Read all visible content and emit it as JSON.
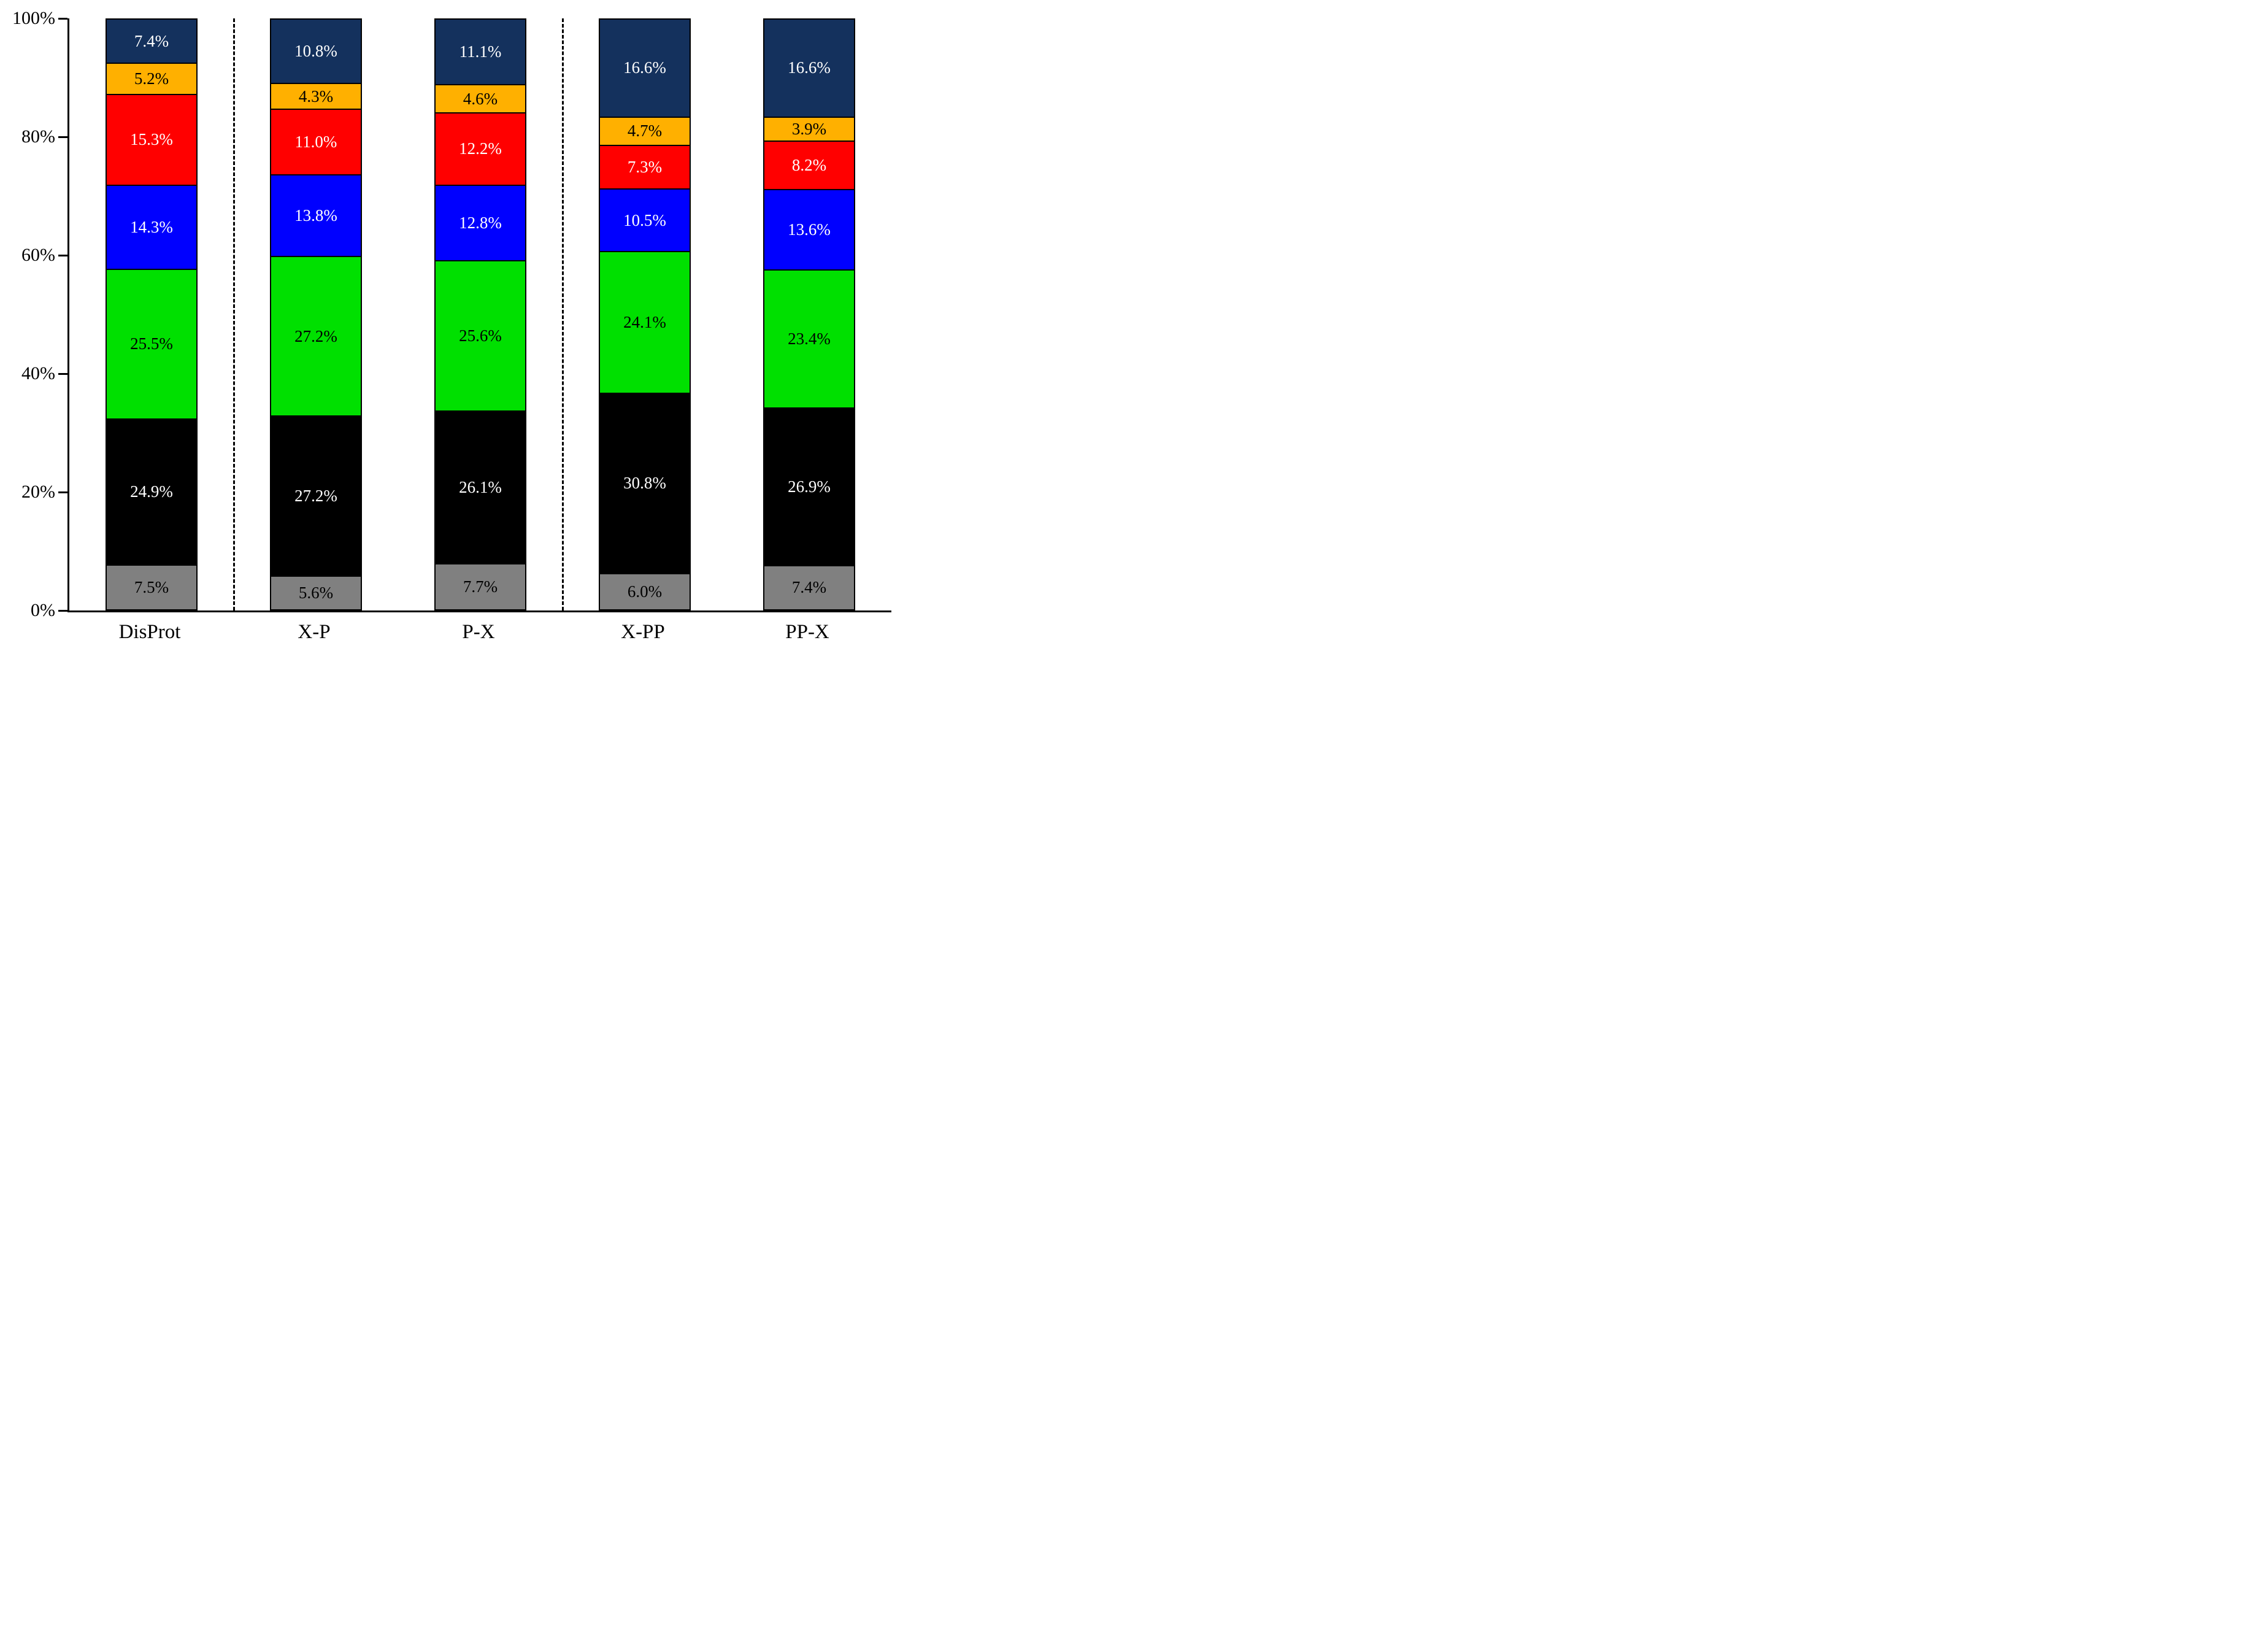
{
  "chart_data": {
    "type": "bar",
    "subtype": "stacked-percentage-bar",
    "title": "",
    "xlabel": "",
    "ylabel": "",
    "categories": [
      "DisProt",
      "X-P",
      "P-X",
      "X-PP",
      "PP-X"
    ],
    "series_order": "bottom-to-top",
    "series": [
      {
        "name": "gray",
        "color": "#808080",
        "text_color": "#000000",
        "values": [
          7.5,
          5.6,
          7.7,
          6.0,
          7.4
        ]
      },
      {
        "name": "black",
        "color": "#000000",
        "text_color": "#ffffff",
        "values": [
          24.9,
          27.2,
          26.1,
          30.8,
          26.9
        ]
      },
      {
        "name": "green",
        "color": "#00e000",
        "text_color": "#000000",
        "values": [
          25.5,
          27.2,
          25.6,
          24.1,
          23.4
        ]
      },
      {
        "name": "blue",
        "color": "#0000ff",
        "text_color": "#ffffff",
        "values": [
          14.3,
          13.8,
          12.8,
          10.5,
          13.6
        ]
      },
      {
        "name": "red",
        "color": "#ff0000",
        "text_color": "#ffffff",
        "values": [
          15.3,
          11.0,
          12.2,
          7.3,
          8.2
        ]
      },
      {
        "name": "orange",
        "color": "#ffb000",
        "text_color": "#000000",
        "values": [
          5.2,
          4.3,
          4.6,
          4.7,
          3.9
        ]
      },
      {
        "name": "navy",
        "color": "#14315d",
        "text_color": "#ffffff",
        "values": [
          7.4,
          10.8,
          11.1,
          16.6,
          16.6
        ]
      }
    ],
    "y_ticks": [
      "0%",
      "20%",
      "40%",
      "60%",
      "80%",
      "100%"
    ],
    "ylim": [
      0,
      100
    ],
    "grid": false,
    "legend": "none",
    "separators_after_category_index": [
      0,
      2
    ],
    "value_suffix": "%",
    "value_decimals": 1
  }
}
